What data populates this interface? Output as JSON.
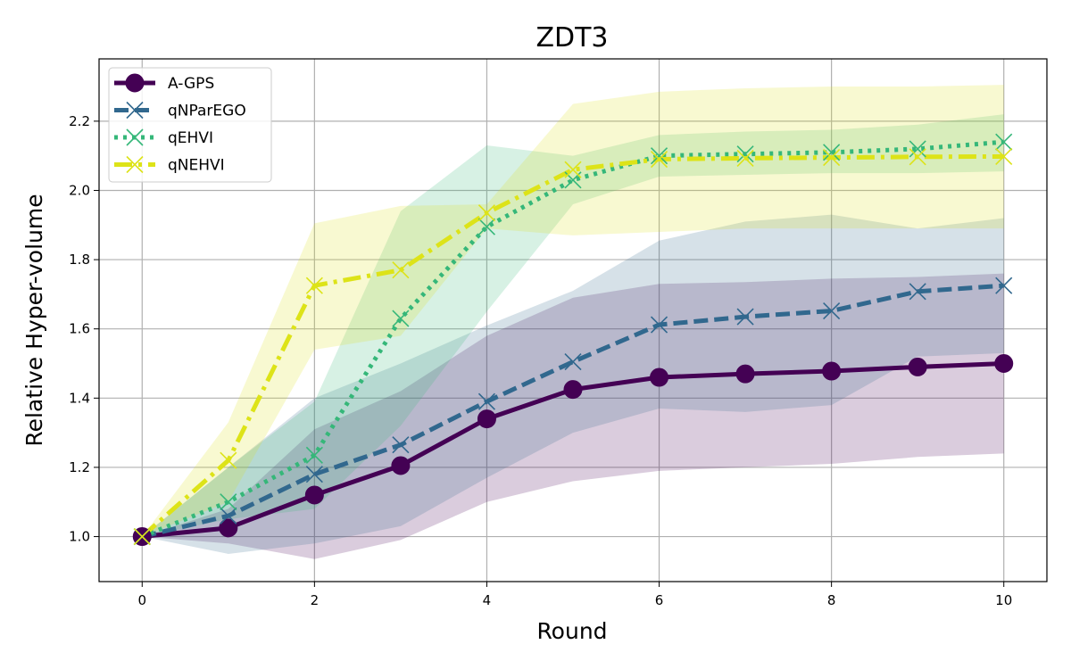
{
  "chart_data": {
    "type": "line",
    "title": "ZDT3",
    "xlabel": "Round",
    "ylabel": "Relative Hyper-volume",
    "xlim": [
      -0.5,
      10.5
    ],
    "ylim": [
      0.87,
      2.38
    ],
    "xticks": [
      0,
      2,
      4,
      6,
      8,
      10
    ],
    "yticks": [
      1.0,
      1.2,
      1.4,
      1.6,
      1.8,
      2.0,
      2.2
    ],
    "grid": true,
    "legend_position": "top-left",
    "x": [
      0,
      1,
      2,
      3,
      4,
      5,
      6,
      7,
      8,
      9,
      10
    ],
    "series": [
      {
        "name": "A-GPS",
        "color": "#440154",
        "dash": "solid",
        "marker": "circle",
        "values": [
          1.0,
          1.025,
          1.12,
          1.205,
          1.34,
          1.425,
          1.46,
          1.47,
          1.478,
          1.49,
          1.5
        ],
        "lower": [
          1.0,
          0.98,
          0.935,
          0.99,
          1.1,
          1.16,
          1.19,
          1.2,
          1.21,
          1.23,
          1.24
        ],
        "upper": [
          1.0,
          1.08,
          1.31,
          1.42,
          1.58,
          1.69,
          1.73,
          1.735,
          1.745,
          1.75,
          1.76
        ]
      },
      {
        "name": "qNParEGO",
        "color": "#31688e",
        "dash": "dashed",
        "marker": "x",
        "values": [
          1.0,
          1.06,
          1.18,
          1.265,
          1.39,
          1.505,
          1.612,
          1.635,
          1.652,
          1.708,
          1.725
        ],
        "lower": [
          1.0,
          0.95,
          0.98,
          1.03,
          1.17,
          1.3,
          1.37,
          1.36,
          1.38,
          1.52,
          1.53
        ],
        "upper": [
          1.0,
          1.2,
          1.4,
          1.5,
          1.61,
          1.71,
          1.855,
          1.91,
          1.93,
          1.89,
          1.92
        ]
      },
      {
        "name": "qEHVI",
        "color": "#35b779",
        "dash": "dotted",
        "marker": "x",
        "values": [
          1.0,
          1.1,
          1.235,
          1.63,
          1.895,
          2.03,
          2.1,
          2.105,
          2.11,
          2.12,
          2.14
        ],
        "lower": [
          1.0,
          1.05,
          1.08,
          1.32,
          1.65,
          1.96,
          2.04,
          2.045,
          2.05,
          2.05,
          2.055
        ],
        "upper": [
          1.0,
          1.2,
          1.39,
          1.94,
          2.13,
          2.1,
          2.16,
          2.17,
          2.175,
          2.19,
          2.22
        ]
      },
      {
        "name": "qNEHVI",
        "color": "#dde318",
        "dash": "dashdot",
        "marker": "x",
        "values": [
          1.0,
          1.22,
          1.725,
          1.77,
          1.935,
          2.06,
          2.09,
          2.093,
          2.095,
          2.097,
          2.098
        ],
        "lower": [
          1.0,
          1.1,
          1.54,
          1.58,
          1.89,
          1.87,
          1.88,
          1.89,
          1.89,
          1.89,
          1.89
        ],
        "upper": [
          1.0,
          1.33,
          1.905,
          1.955,
          1.96,
          2.25,
          2.285,
          2.295,
          2.3,
          2.3,
          2.305
        ]
      }
    ]
  }
}
